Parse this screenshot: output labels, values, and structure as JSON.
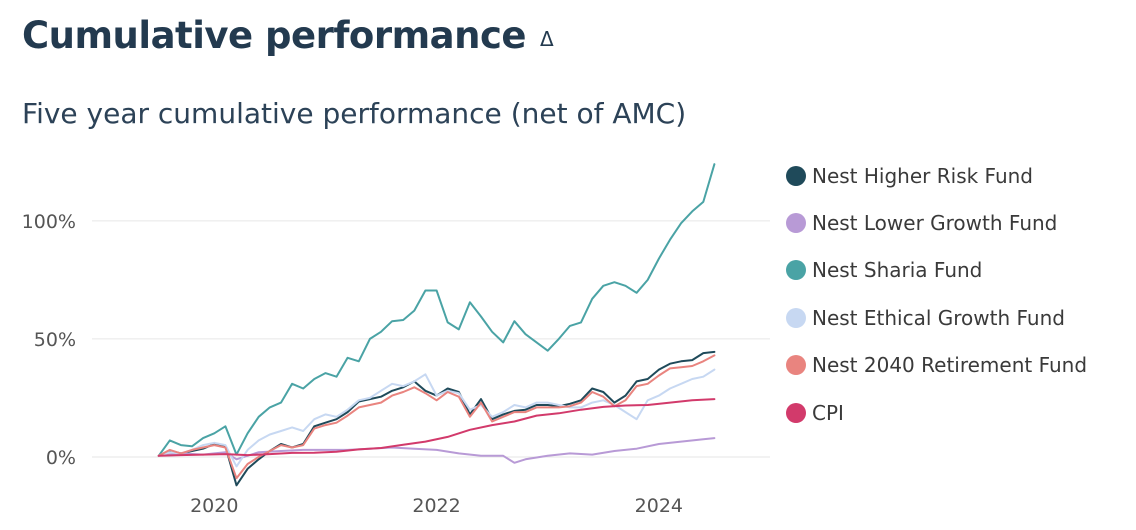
{
  "page": {
    "title": "Cumulative performance",
    "sort_icon": "Δ"
  },
  "chart_data": {
    "type": "line",
    "title": "Five year cumulative performance (net of AMC)",
    "xlabel": "",
    "ylabel": "",
    "x_unit": "year",
    "x_range": [
      2018.9,
      2025.0
    ],
    "y_range": [
      -14,
      130
    ],
    "y_ticks": [
      {
        "value": 0,
        "label": "0%"
      },
      {
        "value": 50,
        "label": "50%"
      },
      {
        "value": 100,
        "label": "100%"
      }
    ],
    "x_ticks": [
      {
        "value": 2020,
        "label": "2020"
      },
      {
        "value": 2022,
        "label": "2022"
      },
      {
        "value": 2024,
        "label": "2024"
      }
    ],
    "grid": "horizontal",
    "legend_position": "right",
    "series": [
      {
        "name": "Nest Higher Risk Fund",
        "color": "#1f4a5a",
        "x": [
          2019.5,
          2019.6,
          2019.7,
          2019.8,
          2019.9,
          2020.0,
          2020.1,
          2020.2,
          2020.3,
          2020.4,
          2020.5,
          2020.6,
          2020.7,
          2020.8,
          2020.9,
          2021.0,
          2021.1,
          2021.2,
          2021.3,
          2021.4,
          2021.5,
          2021.6,
          2021.7,
          2021.8,
          2021.9,
          2022.0,
          2022.1,
          2022.2,
          2022.3,
          2022.4,
          2022.5,
          2022.6,
          2022.7,
          2022.8,
          2022.9,
          2023.0,
          2023.1,
          2023.2,
          2023.3,
          2023.4,
          2023.5,
          2023.6,
          2023.7,
          2023.8,
          2023.9,
          2024.0,
          2024.1,
          2024.2,
          2024.3,
          2024.4,
          2024.5
        ],
        "y": [
          0.5,
          2.5,
          1.5,
          2.5,
          3.5,
          5.5,
          4.5,
          -12,
          -5,
          -1,
          2.5,
          5.5,
          4,
          5.5,
          13,
          14.5,
          16,
          19,
          23.5,
          24.5,
          25.5,
          28,
          29.5,
          32,
          28,
          26,
          29,
          27.5,
          18,
          24.5,
          16,
          18,
          19.5,
          20,
          22,
          22,
          21.5,
          22.5,
          24,
          29,
          27.5,
          23,
          26,
          32,
          33,
          37,
          39.5,
          40.5,
          41,
          44,
          44.5
        ]
      },
      {
        "name": "Nest Lower Growth Fund",
        "color": "#b89ad6",
        "x": [
          2019.5,
          2019.7,
          2019.9,
          2020.0,
          2020.1,
          2020.2,
          2020.4,
          2020.6,
          2020.8,
          2021.0,
          2021.2,
          2021.4,
          2021.6,
          2021.8,
          2022.0,
          2022.2,
          2022.4,
          2022.6,
          2022.7,
          2022.8,
          2023.0,
          2023.2,
          2023.4,
          2023.6,
          2023.8,
          2024.0,
          2024.2,
          2024.4,
          2024.5
        ],
        "y": [
          0.5,
          1.5,
          1,
          1.5,
          2,
          -1,
          2,
          2.5,
          3,
          3,
          3,
          3.5,
          4,
          3.5,
          3,
          1.5,
          0.5,
          0.5,
          -2.5,
          -1,
          0.5,
          1.5,
          1,
          2.5,
          3.5,
          5.5,
          6.5,
          7.5,
          8
        ]
      },
      {
        "name": "Nest Sharia Fund",
        "color": "#4aa3a5",
        "x": [
          2019.5,
          2019.6,
          2019.7,
          2019.8,
          2019.9,
          2020.0,
          2020.1,
          2020.2,
          2020.3,
          2020.4,
          2020.5,
          2020.6,
          2020.7,
          2020.8,
          2020.9,
          2021.0,
          2021.1,
          2021.2,
          2021.3,
          2021.4,
          2021.5,
          2021.6,
          2021.7,
          2021.8,
          2021.9,
          2022.0,
          2022.1,
          2022.2,
          2022.3,
          2022.4,
          2022.5,
          2022.6,
          2022.7,
          2022.8,
          2022.9,
          2023.0,
          2023.1,
          2023.2,
          2023.3,
          2023.4,
          2023.5,
          2023.6,
          2023.7,
          2023.8,
          2023.9,
          2024.0,
          2024.1,
          2024.2,
          2024.3,
          2024.4,
          2024.5
        ],
        "y": [
          0.5,
          7,
          5,
          4.5,
          8,
          10,
          13,
          1,
          10,
          17,
          21,
          23,
          31,
          29,
          33,
          35.5,
          34,
          42,
          40.5,
          50,
          53,
          57.5,
          58,
          62,
          70.5,
          70.5,
          57,
          54,
          65.5,
          59.5,
          53,
          48.5,
          57.5,
          52,
          48.5,
          45,
          50,
          55.5,
          57,
          67,
          72.5,
          74,
          72.5,
          69.5,
          75,
          84,
          92,
          99,
          104,
          108,
          124
        ]
      },
      {
        "name": "Nest Ethical Growth Fund",
        "color": "#c7d8f2",
        "x": [
          2019.5,
          2019.6,
          2019.7,
          2019.8,
          2019.9,
          2020.0,
          2020.1,
          2020.2,
          2020.3,
          2020.4,
          2020.5,
          2020.6,
          2020.7,
          2020.8,
          2020.9,
          2021.0,
          2021.1,
          2021.2,
          2021.3,
          2021.4,
          2021.5,
          2021.6,
          2021.7,
          2021.8,
          2021.9,
          2022.0,
          2022.1,
          2022.2,
          2022.3,
          2022.4,
          2022.5,
          2022.6,
          2022.7,
          2022.8,
          2022.9,
          2023.0,
          2023.1,
          2023.2,
          2023.3,
          2023.4,
          2023.5,
          2023.6,
          2023.7,
          2023.8,
          2023.9,
          2024.0,
          2024.1,
          2024.2,
          2024.3,
          2024.4,
          2024.5
        ],
        "y": [
          0.5,
          2,
          1.5,
          3,
          5,
          6,
          5,
          -4,
          3,
          7,
          9.5,
          11,
          12.5,
          11,
          16,
          18,
          17,
          20,
          24,
          25,
          28,
          31,
          30,
          32,
          35,
          26,
          28,
          27,
          20,
          22,
          17,
          19,
          22,
          21,
          23,
          23,
          22,
          21,
          21,
          23,
          24,
          22,
          19,
          16,
          24,
          26,
          29,
          31,
          33,
          34,
          37
        ]
      },
      {
        "name": "Nest 2040 Retirement Fund",
        "color": "#e9847f",
        "x": [
          2019.5,
          2019.6,
          2019.7,
          2019.8,
          2019.9,
          2020.0,
          2020.1,
          2020.2,
          2020.3,
          2020.4,
          2020.5,
          2020.6,
          2020.7,
          2020.8,
          2020.9,
          2021.0,
          2021.1,
          2021.2,
          2021.3,
          2021.4,
          2021.5,
          2021.6,
          2021.7,
          2021.8,
          2021.9,
          2022.0,
          2022.1,
          2022.2,
          2022.3,
          2022.4,
          2022.5,
          2022.6,
          2022.7,
          2022.8,
          2022.9,
          2023.0,
          2023.1,
          2023.2,
          2023.3,
          2023.4,
          2023.5,
          2023.6,
          2023.7,
          2023.8,
          2023.9,
          2024.0,
          2024.1,
          2024.2,
          2024.3,
          2024.4,
          2024.5
        ],
        "y": [
          0.5,
          3,
          1.5,
          3,
          4,
          5,
          4,
          -9,
          -3,
          0,
          2.5,
          5,
          4,
          5,
          12,
          13.5,
          14.5,
          17.5,
          21,
          22,
          23,
          26,
          27.5,
          29.5,
          27,
          24,
          27.5,
          25.5,
          17,
          23,
          15,
          17,
          19,
          19,
          21,
          21,
          21,
          21.5,
          23,
          27.5,
          25.5,
          21.5,
          24,
          30,
          31,
          34.5,
          37.5,
          38,
          38.5,
          40.5,
          43
        ]
      },
      {
        "name": "CPI",
        "color": "#d23a6b",
        "x": [
          2019.5,
          2019.7,
          2019.9,
          2020.1,
          2020.3,
          2020.5,
          2020.7,
          2020.9,
          2021.1,
          2021.3,
          2021.5,
          2021.7,
          2021.9,
          2022.1,
          2022.3,
          2022.5,
          2022.7,
          2022.9,
          2023.1,
          2023.3,
          2023.5,
          2023.7,
          2023.9,
          2024.1,
          2024.3,
          2024.5
        ],
        "y": [
          0.5,
          0.8,
          1,
          1.2,
          0.8,
          1.2,
          1.7,
          1.8,
          2.2,
          3.2,
          3.8,
          5.2,
          6.5,
          8.5,
          11.5,
          13.5,
          15,
          17.5,
          18.5,
          20,
          21.2,
          21.8,
          22,
          23,
          24,
          24.5
        ]
      }
    ]
  }
}
